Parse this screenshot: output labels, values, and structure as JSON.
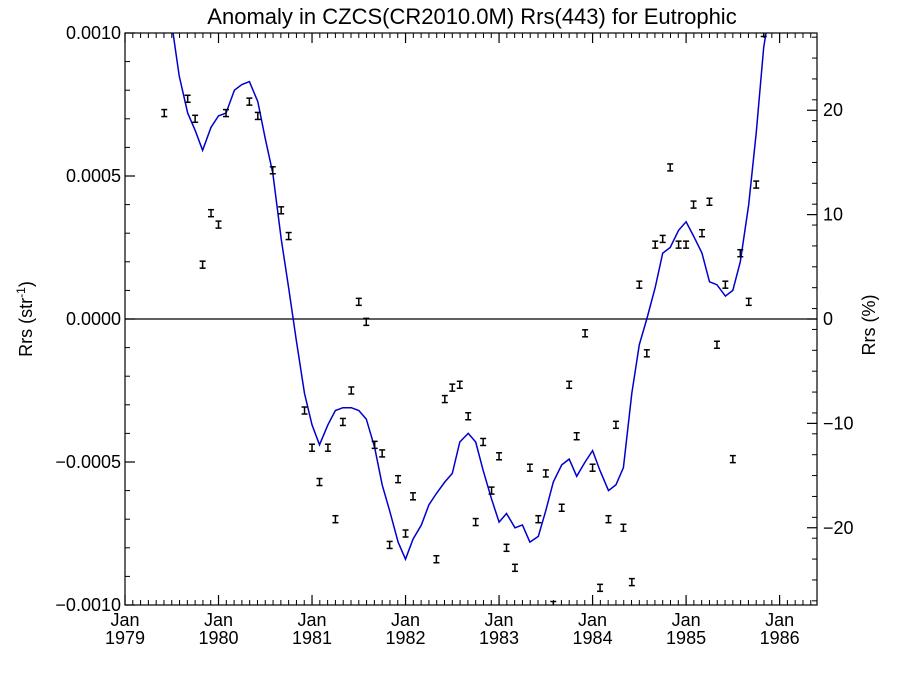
{
  "chart_data": {
    "type": "line",
    "title": "Anomaly in CZCS(CR2010.0M) Rrs(443) for Eutrophic",
    "ylabel_left_prefix": "Rrs (str",
    "ylabel_left_sup": "-1",
    "ylabel_left_suffix": ")",
    "ylabel_right": "Rrs (%)",
    "xlim": [
      1979.0,
      1986.4
    ],
    "ylim_left": [
      -0.001,
      0.001
    ],
    "ylim_right": [
      -27.4,
      27.4
    ],
    "y_ticks_left": [
      {
        "value": 0.001,
        "label": "0.0010"
      },
      {
        "value": 0.0005,
        "label": "0.0005"
      },
      {
        "value": 0.0,
        "label": "0.0000"
      },
      {
        "value": -0.0005,
        "label": "−0.0005"
      },
      {
        "value": -0.001,
        "label": "−0.0010"
      }
    ],
    "y_ticks_right": [
      {
        "value": 20,
        "label": "20"
      },
      {
        "value": 10,
        "label": "10"
      },
      {
        "value": 0,
        "label": "0"
      },
      {
        "value": -10,
        "label": "−10"
      },
      {
        "value": -20,
        "label": "−20"
      }
    ],
    "x_ticks": [
      {
        "value": 1979,
        "month": "Jan",
        "year": "1979"
      },
      {
        "value": 1980,
        "month": "Jan",
        "year": "1980"
      },
      {
        "value": 1981,
        "month": "Jan",
        "year": "1981"
      },
      {
        "value": 1982,
        "month": "Jan",
        "year": "1982"
      },
      {
        "value": 1983,
        "month": "Jan",
        "year": "1983"
      },
      {
        "value": 1984,
        "month": "Jan",
        "year": "1984"
      },
      {
        "value": 1985,
        "month": "Jan",
        "year": "1985"
      },
      {
        "value": 1986,
        "month": "Jan",
        "year": "1986"
      }
    ],
    "zero_line": 0,
    "series": [
      {
        "kind": "smoothed-line",
        "color": "#0000cc",
        "points": [
          [
            1979.5,
            0.00103
          ],
          [
            1979.58,
            0.00085
          ],
          [
            1979.67,
            0.00072
          ],
          [
            1979.75,
            0.00066
          ],
          [
            1979.83,
            0.00059
          ],
          [
            1979.92,
            0.00067
          ],
          [
            1980.0,
            0.00071
          ],
          [
            1980.08,
            0.00072
          ],
          [
            1980.17,
            0.0008
          ],
          [
            1980.25,
            0.00082
          ],
          [
            1980.33,
            0.00083
          ],
          [
            1980.42,
            0.00076
          ],
          [
            1980.5,
            0.00063
          ],
          [
            1980.58,
            0.00051
          ],
          [
            1980.67,
            0.00028
          ],
          [
            1980.75,
            0.00011
          ],
          [
            1980.83,
            -7e-05
          ],
          [
            1980.92,
            -0.00026
          ],
          [
            1981.0,
            -0.00037
          ],
          [
            1981.08,
            -0.00044
          ],
          [
            1981.17,
            -0.00037
          ],
          [
            1981.25,
            -0.00032
          ],
          [
            1981.33,
            -0.00031
          ],
          [
            1981.42,
            -0.00031
          ],
          [
            1981.5,
            -0.00032
          ],
          [
            1981.58,
            -0.00035
          ],
          [
            1981.67,
            -0.00045
          ],
          [
            1981.75,
            -0.00058
          ],
          [
            1981.83,
            -0.00067
          ],
          [
            1981.92,
            -0.00078
          ],
          [
            1982.0,
            -0.00084
          ],
          [
            1982.08,
            -0.00077
          ],
          [
            1982.17,
            -0.00072
          ],
          [
            1982.25,
            -0.00065
          ],
          [
            1982.33,
            -0.00061
          ],
          [
            1982.42,
            -0.00057
          ],
          [
            1982.5,
            -0.00054
          ],
          [
            1982.58,
            -0.00043
          ],
          [
            1982.67,
            -0.0004
          ],
          [
            1982.75,
            -0.00043
          ],
          [
            1982.83,
            -0.00053
          ],
          [
            1982.92,
            -0.00063
          ],
          [
            1983.0,
            -0.00071
          ],
          [
            1983.08,
            -0.00068
          ],
          [
            1983.17,
            -0.00073
          ],
          [
            1983.25,
            -0.00072
          ],
          [
            1983.33,
            -0.00078
          ],
          [
            1983.42,
            -0.00076
          ],
          [
            1983.5,
            -0.00067
          ],
          [
            1983.58,
            -0.00057
          ],
          [
            1983.67,
            -0.00051
          ],
          [
            1983.75,
            -0.00049
          ],
          [
            1983.83,
            -0.00055
          ],
          [
            1983.92,
            -0.0005
          ],
          [
            1984.0,
            -0.00046
          ],
          [
            1984.08,
            -0.00053
          ],
          [
            1984.17,
            -0.0006
          ],
          [
            1984.25,
            -0.00058
          ],
          [
            1984.33,
            -0.00052
          ],
          [
            1984.42,
            -0.00026
          ],
          [
            1984.5,
            -9e-05
          ],
          [
            1984.58,
            0.0
          ],
          [
            1984.67,
            0.00011
          ],
          [
            1984.75,
            0.00023
          ],
          [
            1984.83,
            0.00025
          ],
          [
            1984.92,
            0.00031
          ],
          [
            1985.0,
            0.00034
          ],
          [
            1985.08,
            0.00029
          ],
          [
            1985.17,
            0.00023
          ],
          [
            1985.25,
            0.00013
          ],
          [
            1985.33,
            0.00012
          ],
          [
            1985.42,
            8e-05
          ],
          [
            1985.5,
            0.0001
          ],
          [
            1985.58,
            0.0002
          ],
          [
            1985.67,
            0.0004
          ],
          [
            1985.75,
            0.00065
          ],
          [
            1985.83,
            0.00095
          ],
          [
            1985.88,
            0.00105
          ]
        ]
      },
      {
        "kind": "error-bars",
        "color": "#000000",
        "points": [
          [
            1979.42,
            0.00072
          ],
          [
            1979.67,
            0.00077
          ],
          [
            1979.75,
            0.0007
          ],
          [
            1979.83,
            0.00019
          ],
          [
            1979.92,
            0.00037
          ],
          [
            1980.0,
            0.00033
          ],
          [
            1980.08,
            0.00072
          ],
          [
            1980.33,
            0.00076
          ],
          [
            1980.42,
            0.00071
          ],
          [
            1980.58,
            0.00052
          ],
          [
            1980.67,
            0.00038
          ],
          [
            1980.75,
            0.00029
          ],
          [
            1980.92,
            -0.00032
          ],
          [
            1981.0,
            -0.00045
          ],
          [
            1981.08,
            -0.00057
          ],
          [
            1981.17,
            -0.00045
          ],
          [
            1981.25,
            -0.0007
          ],
          [
            1981.33,
            -0.00036
          ],
          [
            1981.42,
            -0.00025
          ],
          [
            1981.5,
            6e-05
          ],
          [
            1981.58,
            -1e-05
          ],
          [
            1981.67,
            -0.00044
          ],
          [
            1981.75,
            -0.00047
          ],
          [
            1981.83,
            -0.00079
          ],
          [
            1981.92,
            -0.00056
          ],
          [
            1982.0,
            -0.00075
          ],
          [
            1982.08,
            -0.00062
          ],
          [
            1982.33,
            -0.00084
          ],
          [
            1982.42,
            -0.00028
          ],
          [
            1982.5,
            -0.00024
          ],
          [
            1982.58,
            -0.00023
          ],
          [
            1982.67,
            -0.00034
          ],
          [
            1982.75,
            -0.00071
          ],
          [
            1982.83,
            -0.00043
          ],
          [
            1982.92,
            -0.0006
          ],
          [
            1983.0,
            -0.00048
          ],
          [
            1983.08,
            -0.0008
          ],
          [
            1983.17,
            -0.00087
          ],
          [
            1983.33,
            -0.00052
          ],
          [
            1983.42,
            -0.0007
          ],
          [
            1983.5,
            -0.00054
          ],
          [
            1983.58,
            -0.001
          ],
          [
            1983.67,
            -0.00066
          ],
          [
            1983.75,
            -0.00023
          ],
          [
            1983.83,
            -0.00041
          ],
          [
            1983.92,
            -5e-05
          ],
          [
            1984.0,
            -0.00052
          ],
          [
            1984.08,
            -0.00094
          ],
          [
            1984.17,
            -0.0007
          ],
          [
            1984.25,
            -0.00037
          ],
          [
            1984.33,
            -0.00073
          ],
          [
            1984.42,
            -0.00092
          ],
          [
            1984.5,
            0.00012
          ],
          [
            1984.58,
            -0.00012
          ],
          [
            1984.67,
            0.00026
          ],
          [
            1984.75,
            0.00028
          ],
          [
            1984.83,
            0.00053
          ],
          [
            1984.92,
            0.00026
          ],
          [
            1985.0,
            0.00026
          ],
          [
            1985.08,
            0.0004
          ],
          [
            1985.17,
            0.0003
          ],
          [
            1985.25,
            0.00041
          ],
          [
            1985.33,
            -9e-05
          ],
          [
            1985.42,
            0.00012
          ],
          [
            1985.5,
            -0.00049
          ],
          [
            1985.58,
            0.00023
          ],
          [
            1985.67,
            6e-05
          ],
          [
            1985.75,
            0.00047
          ],
          [
            1985.83,
            0.001
          ]
        ]
      }
    ]
  }
}
